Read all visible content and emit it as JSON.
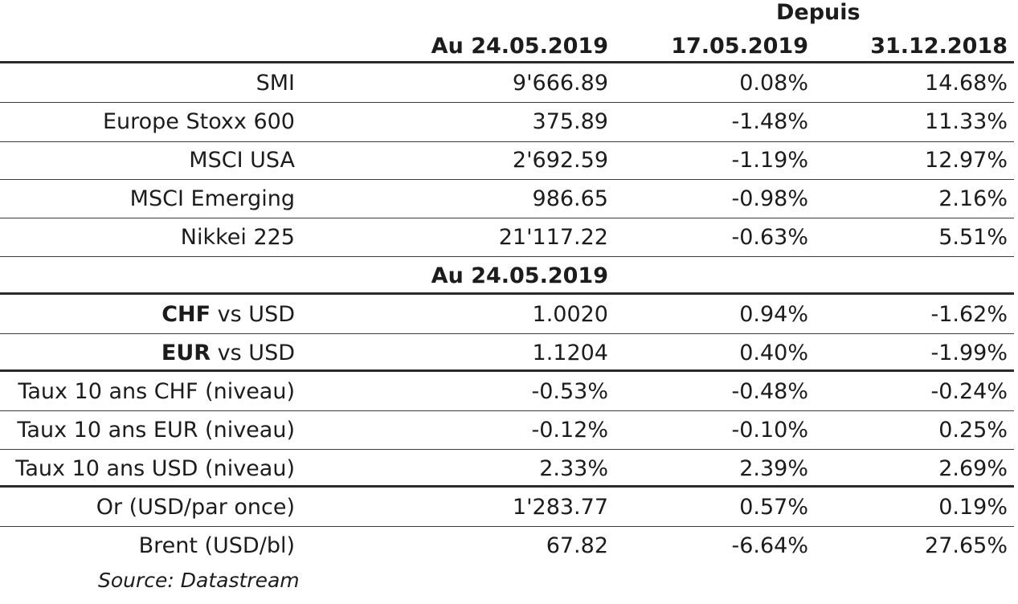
{
  "header": {
    "depuis": "Depuis",
    "col_date": "Au 24.05.2019",
    "col_week": "17.05.2019",
    "col_ytd": "31.12.2018"
  },
  "equities": [
    {
      "name": "SMI",
      "level": "9'666.89",
      "chg_week": "0.08%",
      "chg_ytd": "14.68%"
    },
    {
      "name": "Europe Stoxx 600",
      "level": "375.89",
      "chg_week": "-1.48%",
      "chg_ytd": "11.33%"
    },
    {
      "name": "MSCI USA",
      "level": "2'692.59",
      "chg_week": "-1.19%",
      "chg_ytd": "12.97%"
    },
    {
      "name": "MSCI Emerging",
      "level": "986.65",
      "chg_week": "-0.98%",
      "chg_ytd": "2.16%"
    },
    {
      "name": "Nikkei 225",
      "level": "21'117.22",
      "chg_week": "-0.63%",
      "chg_ytd": "5.51%"
    }
  ],
  "section_date": "Au 24.05.2019",
  "fx": [
    {
      "bold": "CHF",
      "rest": " vs USD",
      "level": "1.0020",
      "chg_week": "0.94%",
      "chg_ytd": "-1.62%"
    },
    {
      "bold": "EUR",
      "rest": " vs USD",
      "level": "1.1204",
      "chg_week": "0.40%",
      "chg_ytd": "-1.99%"
    }
  ],
  "rates": [
    {
      "name": "Taux 10 ans CHF (niveau)",
      "level": "-0.53%",
      "chg_week": "-0.48%",
      "chg_ytd": "-0.24%"
    },
    {
      "name": "Taux 10 ans EUR (niveau)",
      "level": "-0.12%",
      "chg_week": "-0.10%",
      "chg_ytd": "0.25%"
    },
    {
      "name": "Taux 10 ans USD (niveau)",
      "level": "2.33%",
      "chg_week": "2.39%",
      "chg_ytd": "2.69%"
    }
  ],
  "commodities": [
    {
      "name": "Or (USD/par once)",
      "level": "1'283.77",
      "chg_week": "0.57%",
      "chg_ytd": "0.19%"
    },
    {
      "name": "Brent (USD/bl)",
      "level": "67.82",
      "chg_week": "-6.64%",
      "chg_ytd": "27.65%"
    }
  ],
  "source": "Source: Datastream"
}
